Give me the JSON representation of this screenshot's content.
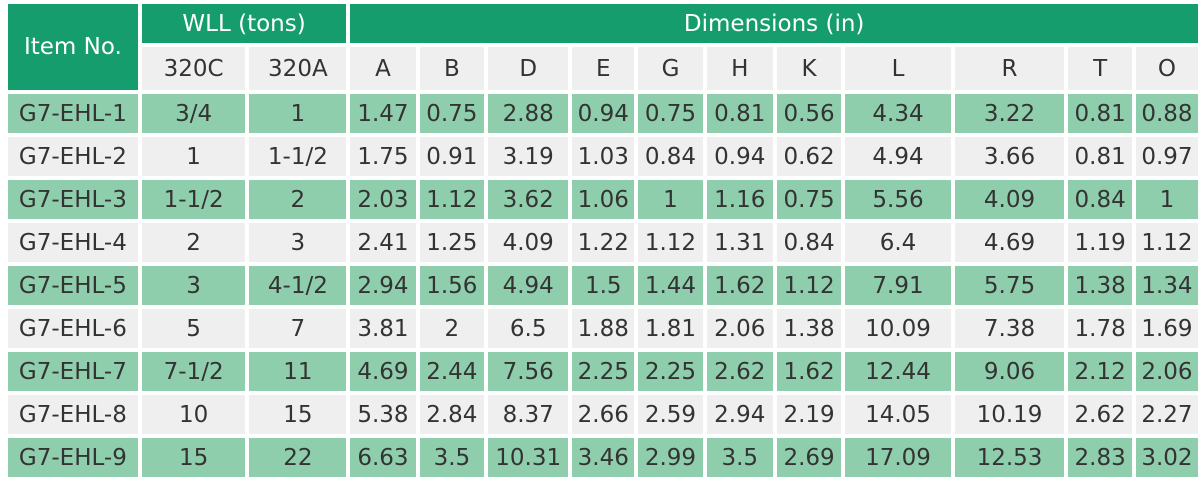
{
  "table": {
    "item_header": "Item No.",
    "wll_header": "WLL (tons)",
    "dims_header": "Dimensions (in)",
    "wll_cols": [
      "320C",
      "320A"
    ],
    "dim_cols": [
      "A",
      "B",
      "D",
      "E",
      "G",
      "H",
      "K",
      "L",
      "R",
      "T",
      "O"
    ],
    "rows": [
      {
        "item": "G7-EHL-1",
        "wll_320c": "3/4",
        "wll_320a": "1",
        "dims": [
          "1.47",
          "0.75",
          "2.88",
          "0.94",
          "0.75",
          "0.81",
          "0.56",
          "4.34",
          "3.22",
          "0.81",
          "0.88"
        ]
      },
      {
        "item": "G7-EHL-2",
        "wll_320c": "1",
        "wll_320a": "1-1/2",
        "dims": [
          "1.75",
          "0.91",
          "3.19",
          "1.03",
          "0.84",
          "0.94",
          "0.62",
          "4.94",
          "3.66",
          "0.81",
          "0.97"
        ]
      },
      {
        "item": "G7-EHL-3",
        "wll_320c": "1-1/2",
        "wll_320a": "2",
        "dims": [
          "2.03",
          "1.12",
          "3.62",
          "1.06",
          "1",
          "1.16",
          "0.75",
          "5.56",
          "4.09",
          "0.84",
          "1"
        ]
      },
      {
        "item": "G7-EHL-4",
        "wll_320c": "2",
        "wll_320a": "3",
        "dims": [
          "2.41",
          "1.25",
          "4.09",
          "1.22",
          "1.12",
          "1.31",
          "0.84",
          "6.4",
          "4.69",
          "1.19",
          "1.12"
        ]
      },
      {
        "item": "G7-EHL-5",
        "wll_320c": "3",
        "wll_320a": "4-1/2",
        "dims": [
          "2.94",
          "1.56",
          "4.94",
          "1.5",
          "1.44",
          "1.62",
          "1.12",
          "7.91",
          "5.75",
          "1.38",
          "1.34"
        ]
      },
      {
        "item": "G7-EHL-6",
        "wll_320c": "5",
        "wll_320a": "7",
        "dims": [
          "3.81",
          "2",
          "6.5",
          "1.88",
          "1.81",
          "2.06",
          "1.38",
          "10.09",
          "7.38",
          "1.78",
          "1.69"
        ]
      },
      {
        "item": "G7-EHL-7",
        "wll_320c": "7-1/2",
        "wll_320a": "11",
        "dims": [
          "4.69",
          "2.44",
          "7.56",
          "2.25",
          "2.25",
          "2.62",
          "1.62",
          "12.44",
          "9.06",
          "2.12",
          "2.06"
        ]
      },
      {
        "item": "G7-EHL-8",
        "wll_320c": "10",
        "wll_320a": "15",
        "dims": [
          "5.38",
          "2.84",
          "8.37",
          "2.66",
          "2.59",
          "2.94",
          "2.19",
          "14.05",
          "10.19",
          "2.62",
          "2.27"
        ]
      },
      {
        "item": "G7-EHL-9",
        "wll_320c": "15",
        "wll_320a": "22",
        "dims": [
          "6.63",
          "3.5",
          "10.31",
          "3.46",
          "2.99",
          "3.5",
          "2.69",
          "17.09",
          "12.53",
          "2.83",
          "3.02"
        ]
      }
    ]
  },
  "colors": {
    "header_green": "#159d6d",
    "row_green": "#8fceac",
    "row_grey": "#efefef",
    "text": "#333333"
  }
}
